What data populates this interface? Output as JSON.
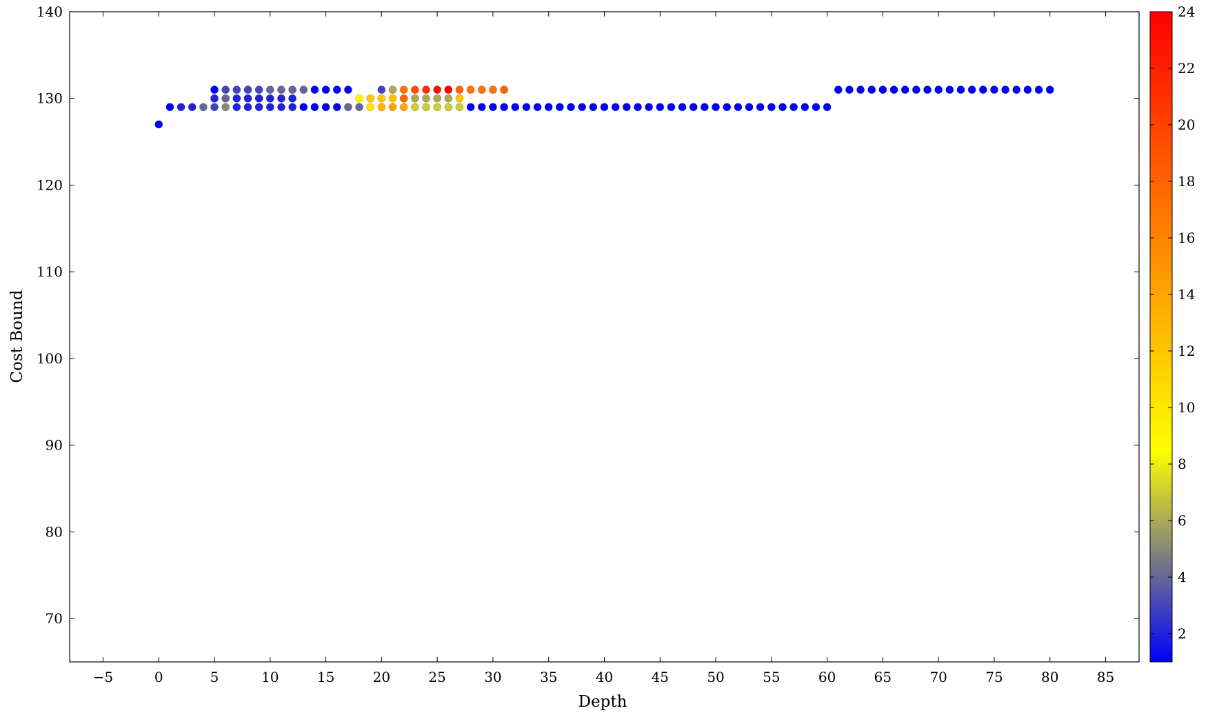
{
  "chart_data": {
    "type": "scatter",
    "title": "",
    "xlabel": "Depth",
    "ylabel": "Cost Bound",
    "xlim": [
      -8,
      88
    ],
    "ylim": [
      65,
      140
    ],
    "xticks": [
      -5,
      0,
      5,
      10,
      15,
      20,
      25,
      30,
      35,
      40,
      45,
      50,
      55,
      60,
      65,
      70,
      75,
      80,
      85
    ],
    "xtick_labels": [
      "−5",
      "0",
      "5",
      "10",
      "15",
      "20",
      "25",
      "30",
      "35",
      "40",
      "45",
      "50",
      "55",
      "60",
      "65",
      "70",
      "75",
      "80",
      "85"
    ],
    "yticks": [
      70,
      80,
      90,
      100,
      110,
      120,
      130,
      140
    ],
    "ytick_labels": [
      "70",
      "80",
      "90",
      "100",
      "110",
      "120",
      "130",
      "140"
    ],
    "grid": false,
    "colorbar": {
      "min": 1,
      "max": 24,
      "ticks": [
        2,
        4,
        6,
        8,
        10,
        12,
        14,
        16,
        18,
        20,
        22,
        24
      ],
      "tick_labels": [
        "2",
        "4",
        "6",
        "8",
        "10",
        "12",
        "14",
        "16",
        "18",
        "20",
        "22",
        "24"
      ],
      "colormap": [
        "#0000ff",
        "#ffff00",
        "#ff0000"
      ],
      "colormap_stops": [
        1,
        8.5,
        24
      ]
    },
    "points": [
      [
        0,
        127,
        1
      ],
      [
        1,
        129,
        1
      ],
      [
        2,
        129,
        2
      ],
      [
        3,
        129,
        2
      ],
      [
        4,
        129,
        4
      ],
      [
        5,
        129,
        3
      ],
      [
        6,
        129,
        5
      ],
      [
        7,
        129,
        2
      ],
      [
        8,
        129,
        2
      ],
      [
        9,
        129,
        2
      ],
      [
        10,
        129,
        2
      ],
      [
        11,
        129,
        2
      ],
      [
        12,
        129,
        2
      ],
      [
        13,
        129,
        1
      ],
      [
        14,
        129,
        1
      ],
      [
        15,
        129,
        1
      ],
      [
        16,
        129,
        1
      ],
      [
        17,
        129,
        4
      ],
      [
        18,
        129,
        4
      ],
      [
        19,
        129,
        10
      ],
      [
        20,
        129,
        13
      ],
      [
        21,
        129,
        14
      ],
      [
        22,
        129,
        14
      ],
      [
        23,
        129,
        7
      ],
      [
        24,
        129,
        7
      ],
      [
        25,
        129,
        7
      ],
      [
        26,
        129,
        7
      ],
      [
        27,
        129,
        7
      ],
      [
        28,
        129,
        1
      ],
      [
        29,
        129,
        1
      ],
      [
        30,
        129,
        1
      ],
      [
        31,
        129,
        1
      ],
      [
        32,
        129,
        1
      ],
      [
        33,
        129,
        1
      ],
      [
        34,
        129,
        1
      ],
      [
        35,
        129,
        1
      ],
      [
        36,
        129,
        1
      ],
      [
        37,
        129,
        1
      ],
      [
        38,
        129,
        1
      ],
      [
        39,
        129,
        1
      ],
      [
        40,
        129,
        1
      ],
      [
        41,
        129,
        1
      ],
      [
        42,
        129,
        1
      ],
      [
        43,
        129,
        1
      ],
      [
        44,
        129,
        1
      ],
      [
        45,
        129,
        1
      ],
      [
        46,
        129,
        1
      ],
      [
        47,
        129,
        1
      ],
      [
        48,
        129,
        1
      ],
      [
        49,
        129,
        1
      ],
      [
        50,
        129,
        1
      ],
      [
        51,
        129,
        1
      ],
      [
        52,
        129,
        1
      ],
      [
        53,
        129,
        1
      ],
      [
        54,
        129,
        1
      ],
      [
        55,
        129,
        1
      ],
      [
        56,
        129,
        1
      ],
      [
        57,
        129,
        1
      ],
      [
        58,
        129,
        1
      ],
      [
        59,
        129,
        1
      ],
      [
        60,
        129,
        1
      ],
      [
        5,
        130,
        2
      ],
      [
        6,
        130,
        4
      ],
      [
        7,
        130,
        2
      ],
      [
        8,
        130,
        2
      ],
      [
        9,
        130,
        2
      ],
      [
        10,
        130,
        2
      ],
      [
        11,
        130,
        2
      ],
      [
        12,
        130,
        2
      ],
      [
        18,
        130,
        9
      ],
      [
        19,
        130,
        12
      ],
      [
        20,
        130,
        12
      ],
      [
        21,
        130,
        12
      ],
      [
        22,
        130,
        18
      ],
      [
        23,
        130,
        6
      ],
      [
        24,
        130,
        6
      ],
      [
        25,
        130,
        6
      ],
      [
        26,
        130,
        6
      ],
      [
        27,
        130,
        12
      ],
      [
        5,
        131,
        1
      ],
      [
        6,
        131,
        3
      ],
      [
        7,
        131,
        3
      ],
      [
        8,
        131,
        3
      ],
      [
        9,
        131,
        3
      ],
      [
        10,
        131,
        4
      ],
      [
        11,
        131,
        4
      ],
      [
        12,
        131,
        4
      ],
      [
        13,
        131,
        4
      ],
      [
        14,
        131,
        1
      ],
      [
        15,
        131,
        1
      ],
      [
        16,
        131,
        1
      ],
      [
        17,
        131,
        1
      ],
      [
        20,
        131,
        3
      ],
      [
        21,
        131,
        6
      ],
      [
        22,
        131,
        17
      ],
      [
        23,
        131,
        19
      ],
      [
        24,
        131,
        21
      ],
      [
        25,
        131,
        23
      ],
      [
        26,
        131,
        24
      ],
      [
        27,
        131,
        18
      ],
      [
        28,
        131,
        17
      ],
      [
        29,
        131,
        17
      ],
      [
        30,
        131,
        17
      ],
      [
        31,
        131,
        18
      ],
      [
        61,
        131,
        1
      ],
      [
        62,
        131,
        1
      ],
      [
        63,
        131,
        1
      ],
      [
        64,
        131,
        1
      ],
      [
        65,
        131,
        1
      ],
      [
        66,
        131,
        1
      ],
      [
        67,
        131,
        1
      ],
      [
        68,
        131,
        1
      ],
      [
        69,
        131,
        1
      ],
      [
        70,
        131,
        1
      ],
      [
        71,
        131,
        1
      ],
      [
        72,
        131,
        1
      ],
      [
        73,
        131,
        1
      ],
      [
        74,
        131,
        1
      ],
      [
        75,
        131,
        1
      ],
      [
        76,
        131,
        1
      ],
      [
        77,
        131,
        1
      ],
      [
        78,
        131,
        1
      ],
      [
        79,
        131,
        1
      ],
      [
        80,
        131,
        1
      ]
    ]
  }
}
